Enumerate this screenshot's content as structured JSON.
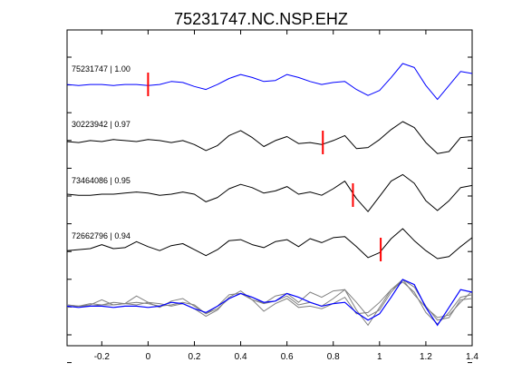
{
  "chart_data": {
    "type": "line",
    "title": "75231747.NC.NSP.EHZ",
    "xlim": [
      -0.35,
      1.4
    ],
    "x_ticks": [
      -0.2,
      0,
      0.2,
      0.4,
      0.6,
      0.8,
      1,
      1.2,
      1.4
    ],
    "x_tick_labels": [
      "-0.2",
      "0",
      "0.2",
      "0.4",
      "0.6",
      "0.8",
      "1",
      "1.2",
      "1.4"
    ],
    "grid": false,
    "colors": {
      "master": "#0000ff",
      "other": "#000000",
      "pick": "#ff0000",
      "stack_other": "#808080"
    },
    "series": [
      {
        "name": "75231747 | 1.00",
        "pick_x": 0.0,
        "x": [
          -0.35,
          -0.3,
          -0.25,
          -0.2,
          -0.15,
          -0.1,
          -0.05,
          0,
          0.05,
          0.1,
          0.15,
          0.2,
          0.25,
          0.3,
          0.35,
          0.4,
          0.45,
          0.5,
          0.55,
          0.6,
          0.65,
          0.7,
          0.75,
          0.8,
          0.85,
          0.9,
          0.95,
          1.0,
          1.05,
          1.1,
          1.15,
          1.2,
          1.25,
          1.3,
          1.35,
          1.4
        ],
        "y": [
          -0.05,
          -0.1,
          -0.05,
          -0.05,
          -0.1,
          -0.05,
          -0.05,
          -0.1,
          -0.05,
          0.1,
          0.05,
          -0.15,
          -0.3,
          -0.05,
          0.25,
          0.45,
          0.3,
          0.1,
          0.15,
          0.45,
          0.3,
          0.1,
          -0.05,
          0.05,
          0.1,
          -0.3,
          -0.6,
          -0.35,
          0.3,
          1.0,
          0.8,
          -0.1,
          -0.8,
          -0.1,
          0.6,
          0.5
        ]
      },
      {
        "name": "30223942 | 0.97",
        "pick_x": 0.755,
        "x": [
          -0.35,
          -0.3,
          -0.25,
          -0.2,
          -0.15,
          -0.1,
          -0.05,
          0,
          0.05,
          0.1,
          0.15,
          0.2,
          0.25,
          0.3,
          0.35,
          0.4,
          0.45,
          0.5,
          0.55,
          0.6,
          0.65,
          0.7,
          0.75,
          0.8,
          0.85,
          0.9,
          0.95,
          1.0,
          1.05,
          1.1,
          1.15,
          1.2,
          1.25,
          1.3,
          1.35,
          1.4
        ],
        "y": [
          0.0,
          -0.05,
          0.05,
          0.0,
          0.1,
          0.05,
          0.0,
          0.1,
          0.05,
          -0.05,
          0.05,
          -0.15,
          -0.45,
          -0.2,
          0.3,
          0.55,
          0.2,
          -0.25,
          0.05,
          0.25,
          -0.1,
          -0.05,
          -0.15,
          0.05,
          0.3,
          -0.35,
          -0.3,
          0.1,
          0.6,
          1.0,
          0.7,
          -0.05,
          -0.6,
          -0.5,
          0.2,
          0.25
        ]
      },
      {
        "name": "73464086 | 0.95",
        "pick_x": 0.885,
        "x": [
          -0.35,
          -0.3,
          -0.25,
          -0.2,
          -0.15,
          -0.1,
          -0.05,
          0,
          0.05,
          0.1,
          0.15,
          0.2,
          0.25,
          0.3,
          0.35,
          0.4,
          0.45,
          0.5,
          0.55,
          0.6,
          0.65,
          0.7,
          0.75,
          0.8,
          0.85,
          0.9,
          0.95,
          1.0,
          1.05,
          1.1,
          1.15,
          1.2,
          1.25,
          1.3,
          1.35,
          1.4
        ],
        "y": [
          0.0,
          -0.05,
          -0.05,
          0.0,
          0.0,
          0.05,
          0.1,
          0.05,
          -0.05,
          0.0,
          0.1,
          0.0,
          -0.35,
          -0.15,
          0.25,
          0.45,
          0.3,
          0.05,
          0.15,
          0.35,
          0.0,
          0.1,
          -0.05,
          0.25,
          0.6,
          -0.2,
          -0.8,
          -0.1,
          0.6,
          0.9,
          0.5,
          -0.3,
          -0.75,
          -0.3,
          0.3,
          0.4
        ]
      },
      {
        "name": "72662796 | 0.94",
        "pick_x": 1.005,
        "x": [
          -0.35,
          -0.3,
          -0.25,
          -0.2,
          -0.15,
          -0.1,
          -0.05,
          0,
          0.05,
          0.1,
          0.15,
          0.2,
          0.25,
          0.3,
          0.35,
          0.4,
          0.45,
          0.5,
          0.55,
          0.6,
          0.65,
          0.7,
          0.75,
          0.8,
          0.85,
          0.9,
          0.95,
          1.0,
          1.05,
          1.1,
          1.15,
          1.2,
          1.25,
          1.3,
          1.35,
          1.4
        ],
        "y": [
          -0.1,
          -0.05,
          0.0,
          0.2,
          0.0,
          0.05,
          0.35,
          0.1,
          -0.1,
          0.15,
          0.25,
          -0.05,
          -0.35,
          -0.05,
          0.4,
          0.45,
          0.2,
          0.05,
          0.35,
          0.45,
          0.1,
          0.5,
          0.3,
          0.55,
          0.6,
          0.1,
          -0.45,
          -0.2,
          0.5,
          1.0,
          0.4,
          -0.1,
          -0.5,
          -0.4,
          0.1,
          0.55
        ]
      }
    ]
  }
}
